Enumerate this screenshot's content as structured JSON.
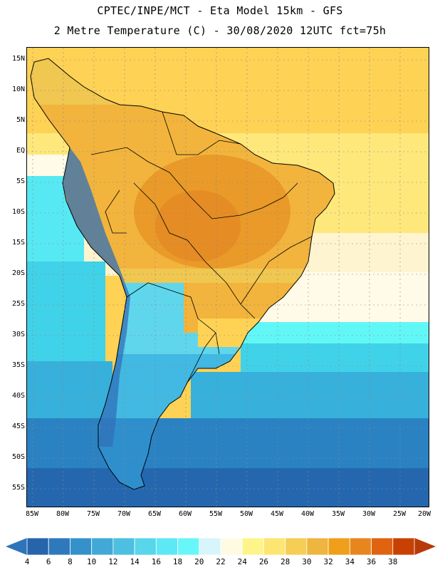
{
  "header": {
    "line1": "CPTEC/INPE/MCT  -   Eta Model 15km  -  GFS",
    "line2": "2 Metre Temperature (C) - 30/08/2020 12UTC fct=75h"
  },
  "map": {
    "lat_labels": [
      "15N",
      "10N",
      "5N",
      "EQ",
      "5S",
      "10S",
      "15S",
      "20S",
      "25S",
      "30S",
      "35S",
      "40S",
      "45S",
      "50S",
      "55S"
    ],
    "lon_labels": [
      "85W",
      "80W",
      "75W",
      "70W",
      "65W",
      "60W",
      "55W",
      "50W",
      "45W",
      "40W",
      "35W",
      "30W",
      "25W",
      "20W"
    ],
    "extent": {
      "lon_min": -85,
      "lon_max": -19,
      "lat_max": 16,
      "lat_min": -58
    },
    "ocean_colors": [
      "#fed254",
      "#fee87c",
      "#fefcb4",
      "#fffbe8",
      "#fef4cf",
      "#56e9f3",
      "#62f7f7",
      "#40d2e8",
      "#37b0db",
      "#2a82c3",
      "#2567ae"
    ],
    "land_colors": [
      "#f0c750",
      "#f2b43c",
      "#e99a28",
      "#e58c24",
      "#5fd6ec",
      "#42b9e2",
      "#2f8fcd",
      "#3070b8"
    ]
  },
  "legend": {
    "ticks": [
      "4",
      "6",
      "8",
      "10",
      "12",
      "14",
      "16",
      "18",
      "20",
      "22",
      "24",
      "26",
      "28",
      "30",
      "32",
      "34",
      "36",
      "38"
    ],
    "colors": [
      "#2764ab",
      "#2e79bb",
      "#3591c9",
      "#42a9d7",
      "#4dbfe1",
      "#57d6ec",
      "#5ee7f4",
      "#68f7f8",
      "#d6f6fb",
      "#fffbe3",
      "#fef58a",
      "#fde571",
      "#f6ce56",
      "#eeb53f",
      "#ef9f19",
      "#e8861e",
      "#df6310",
      "#c84102"
    ],
    "below_color": "#2e74b8",
    "above_color": "#b83a08"
  }
}
